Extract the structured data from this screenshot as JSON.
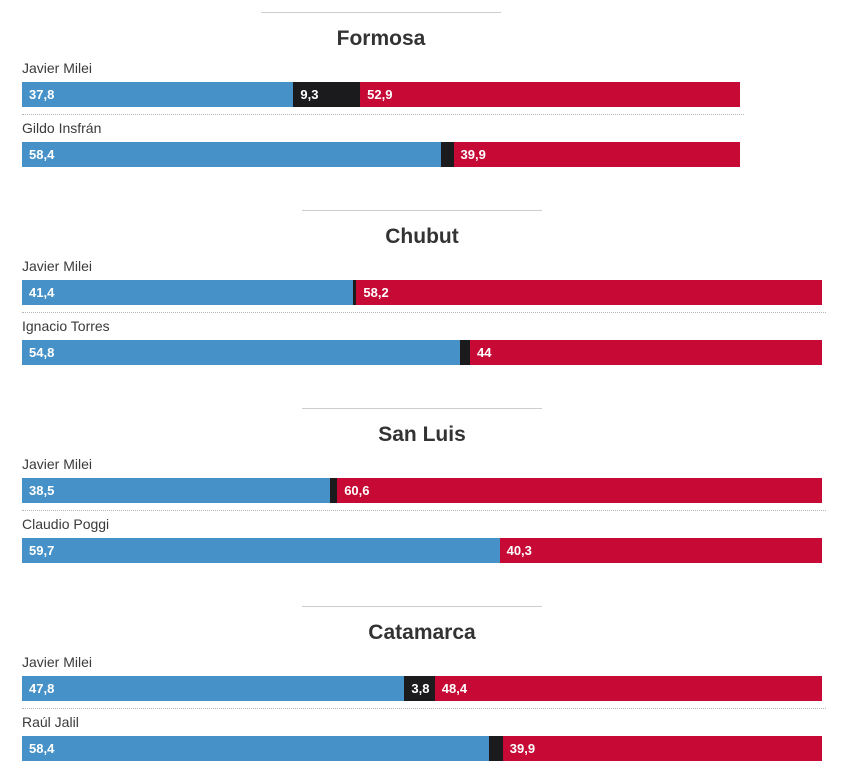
{
  "colors": {
    "blue": "#4691c8",
    "black": "#1b1b1e",
    "red": "#c60935"
  },
  "chart_data": [
    {
      "type": "bar",
      "orientation": "horizontal",
      "stacked": true,
      "title": "Formosa",
      "xlim": [
        0,
        100
      ],
      "value_unit": "%",
      "decimal_style": "comma",
      "legend": "none",
      "grid": false,
      "rows": [
        {
          "label": "Javier Milei",
          "segments": [
            {
              "color": "blue",
              "value": 37.8,
              "text": "37,8"
            },
            {
              "color": "black",
              "value": 9.3,
              "text": "9,3"
            },
            {
              "color": "red",
              "value": 52.9,
              "text": "52,9"
            }
          ]
        },
        {
          "label": "Gildo Insfrán",
          "segments": [
            {
              "color": "blue",
              "value": 58.4,
              "text": "58,4"
            },
            {
              "color": "black",
              "value": 1.7,
              "text": ""
            },
            {
              "color": "red",
              "value": 39.9,
              "text": "39,9"
            }
          ]
        }
      ]
    },
    {
      "type": "bar",
      "orientation": "horizontal",
      "stacked": true,
      "title": "Chubut",
      "xlim": [
        0,
        100
      ],
      "value_unit": "%",
      "decimal_style": "comma",
      "legend": "none",
      "grid": false,
      "rows": [
        {
          "label": "Javier Milei",
          "segments": [
            {
              "color": "blue",
              "value": 41.4,
              "text": "41,4"
            },
            {
              "color": "black",
              "value": 0.4,
              "text": ""
            },
            {
              "color": "red",
              "value": 58.2,
              "text": "58,2"
            }
          ]
        },
        {
          "label": "Ignacio Torres",
          "segments": [
            {
              "color": "blue",
              "value": 54.8,
              "text": "54,8"
            },
            {
              "color": "black",
              "value": 1.2,
              "text": ""
            },
            {
              "color": "red",
              "value": 44,
              "text": "44"
            }
          ]
        }
      ]
    },
    {
      "type": "bar",
      "orientation": "horizontal",
      "stacked": true,
      "title": "San Luis",
      "xlim": [
        0,
        100
      ],
      "value_unit": "%",
      "decimal_style": "comma",
      "legend": "none",
      "grid": false,
      "rows": [
        {
          "label": "Javier Milei",
          "segments": [
            {
              "color": "blue",
              "value": 38.5,
              "text": "38,5"
            },
            {
              "color": "black",
              "value": 0.9,
              "text": ""
            },
            {
              "color": "red",
              "value": 60.6,
              "text": "60,6"
            }
          ]
        },
        {
          "label": "Claudio Poggi",
          "segments": [
            {
              "color": "blue",
              "value": 59.7,
              "text": "59,7"
            },
            {
              "color": "red",
              "value": 40.3,
              "text": "40,3"
            }
          ]
        }
      ]
    },
    {
      "type": "bar",
      "orientation": "horizontal",
      "stacked": true,
      "title": "Catamarca",
      "xlim": [
        0,
        100
      ],
      "value_unit": "%",
      "decimal_style": "comma",
      "legend": "none",
      "grid": false,
      "rows": [
        {
          "label": "Javier Milei",
          "segments": [
            {
              "color": "blue",
              "value": 47.8,
              "text": "47,8"
            },
            {
              "color": "black",
              "value": 3.8,
              "text": "3,8"
            },
            {
              "color": "red",
              "value": 48.4,
              "text": "48,4"
            }
          ]
        },
        {
          "label": "Raúl Jalil",
          "segments": [
            {
              "color": "blue",
              "value": 58.4,
              "text": "58,4"
            },
            {
              "color": "black",
              "value": 1.7,
              "text": ""
            },
            {
              "color": "red",
              "value": 39.9,
              "text": "39,9"
            }
          ]
        }
      ]
    }
  ]
}
